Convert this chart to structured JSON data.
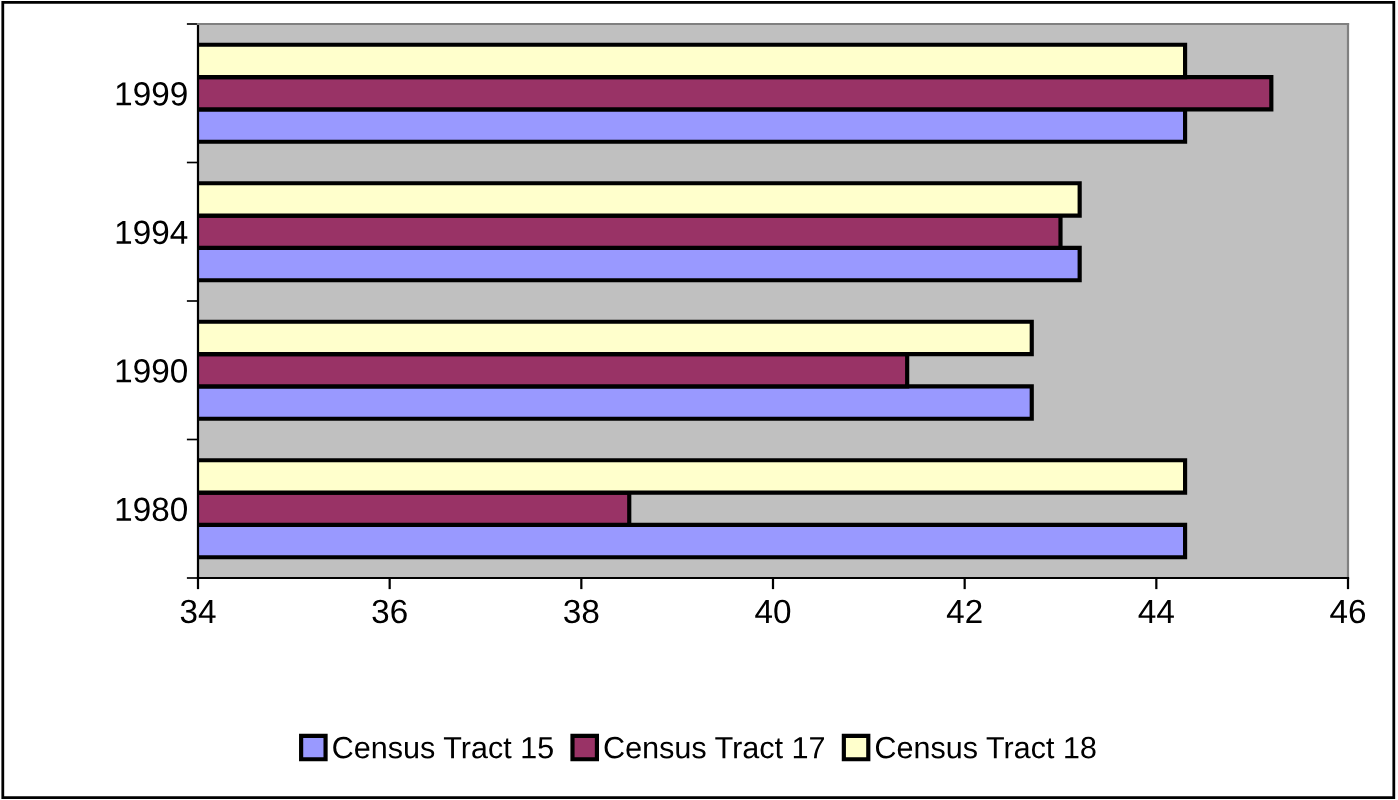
{
  "chart_data": {
    "type": "bar",
    "orientation": "horizontal",
    "categories": [
      "1999",
      "1994",
      "1990",
      "1980"
    ],
    "series": [
      {
        "name": "Census Tract 15",
        "color": "#9999ff",
        "values": [
          44.3,
          43.2,
          42.7,
          44.3
        ]
      },
      {
        "name": "Census Tract 17",
        "color": "#993366",
        "values": [
          45.2,
          43.0,
          41.4,
          38.5
        ]
      },
      {
        "name": "Census Tract 18",
        "color": "#ffffcc",
        "values": [
          44.3,
          43.2,
          42.7,
          44.3
        ]
      }
    ],
    "xlim": [
      34,
      46
    ],
    "xticks": [
      34,
      36,
      38,
      40,
      42,
      44,
      46
    ],
    "grid": false,
    "legend": "bottom"
  }
}
